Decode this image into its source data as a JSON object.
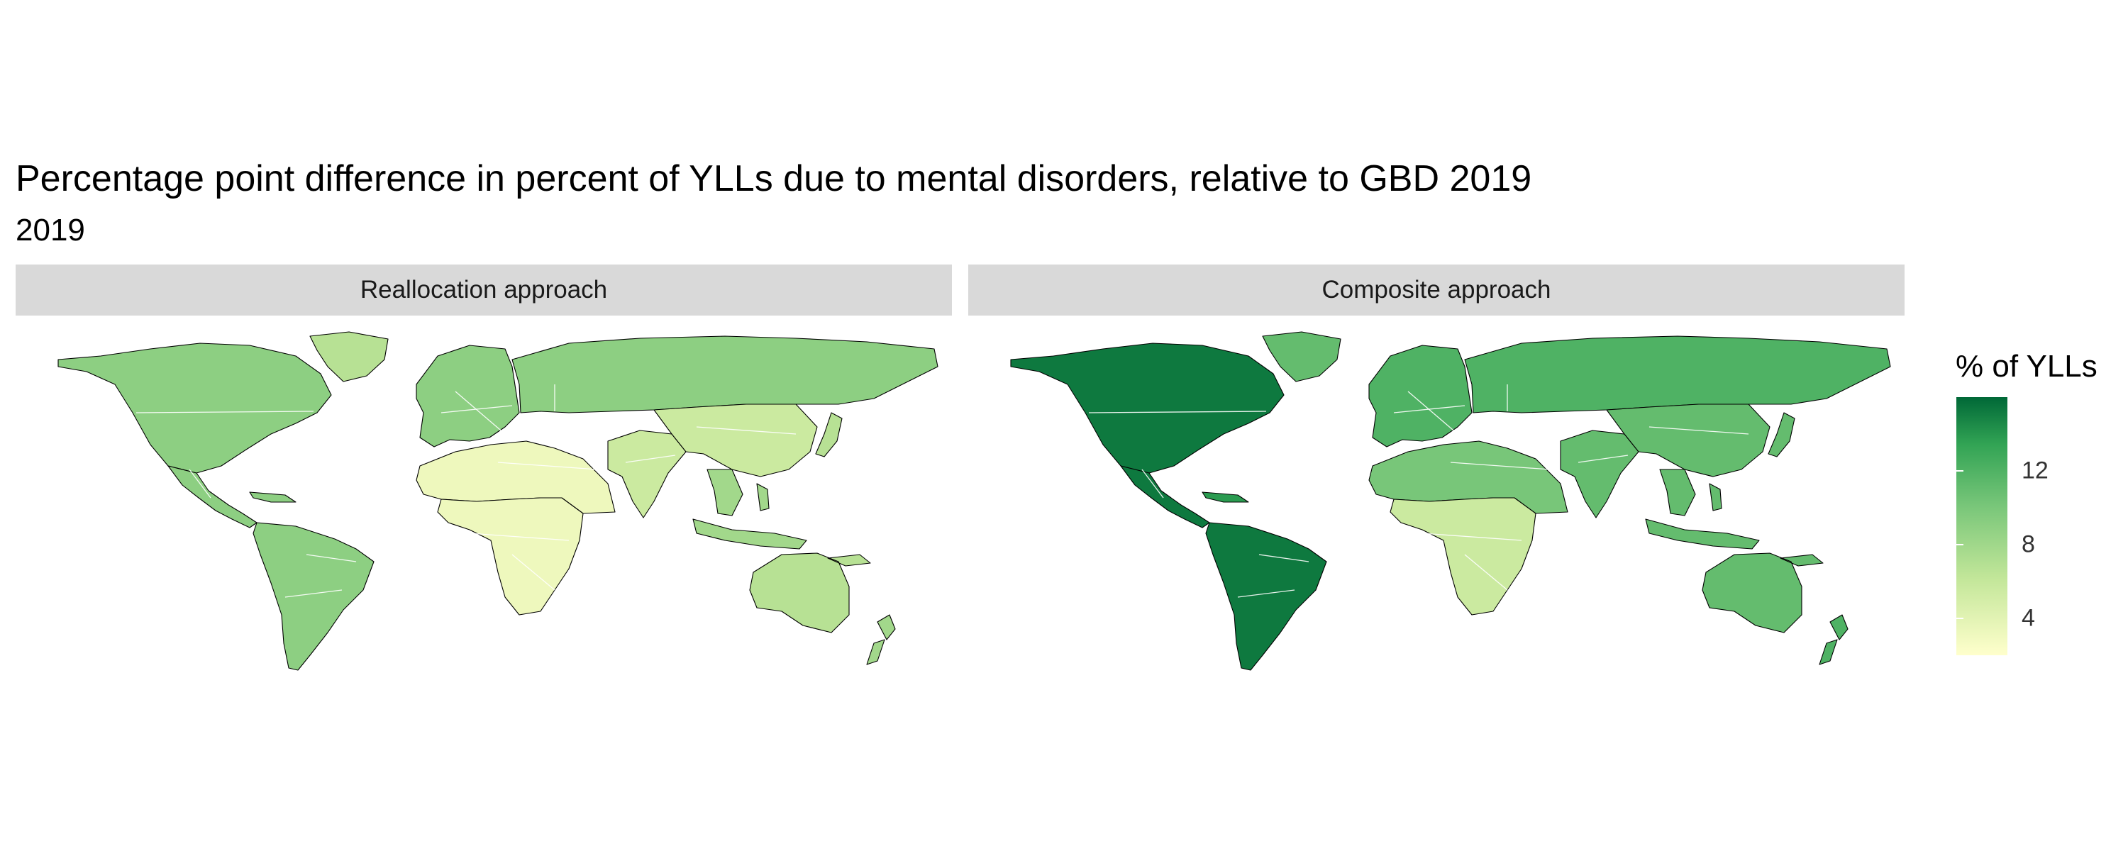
{
  "title": "Percentage point difference in percent of YLLs due to mental disorders, relative to GBD 2019",
  "subtitle": "2019",
  "panels": [
    {
      "label": "Reallocation approach"
    },
    {
      "label": "Composite approach"
    }
  ],
  "legend": {
    "title": "% of YLLs",
    "ticks": [
      {
        "label": "4",
        "value": 4
      },
      {
        "label": "8",
        "value": 8
      },
      {
        "label": "12",
        "value": 12
      }
    ],
    "range": [
      2,
      16
    ],
    "palette": [
      "#ffffcc",
      "#c2e699",
      "#78c679",
      "#31a354",
      "#006837"
    ]
  },
  "map_data": {
    "reallocation": {
      "north_america": 8,
      "greenland": 6,
      "central_america": 8,
      "caribbean": 8,
      "south_america": 8,
      "europe": 8,
      "russia_north_asia": 8,
      "north_africa_middle_east": 3,
      "sub_saharan_africa": 3,
      "south_asia": 5,
      "east_asia": 5,
      "southeast_asia": 7,
      "japan": 6,
      "oceania": 6,
      "new_zealand": 7
    },
    "composite": {
      "north_america": 15,
      "greenland": 10,
      "central_america": 15,
      "caribbean": 13,
      "south_america": 15,
      "europe": 11,
      "russia_north_asia": 11,
      "north_africa_middle_east": 9,
      "sub_saharan_africa": 5,
      "south_asia": 10,
      "east_asia": 10,
      "southeast_asia": 10,
      "japan": 10,
      "oceania": 10,
      "new_zealand": 11
    }
  }
}
